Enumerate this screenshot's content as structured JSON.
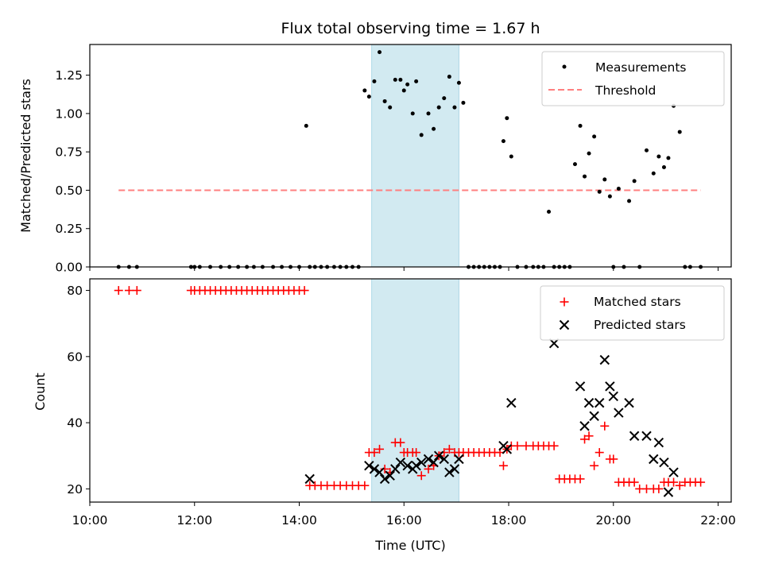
{
  "title": "Flux total observing time = 1.67 h",
  "colors": {
    "measurement": "#000000",
    "threshold": "#ff7f7f",
    "matched": "#ff0000",
    "predicted": "#000000",
    "highlight": "#add8e6"
  },
  "chart_data": [
    {
      "type": "scatter",
      "ylabel": "Matched/Predicted stars",
      "xlim": [
        "10:00",
        "22:15"
      ],
      "ylim": [
        0,
        1.45
      ],
      "grid": false,
      "legend_position": "top-right",
      "y_ticks": [
        "0.00",
        "0.25",
        "0.50",
        "0.75",
        "1.00",
        "1.25"
      ],
      "highlight_span": [
        "15:23",
        "17:03"
      ],
      "legend": [
        "Measurements",
        "Threshold"
      ],
      "threshold": {
        "name": "Threshold",
        "value": 0.5,
        "x_range": [
          "10:33",
          "21:40"
        ]
      },
      "measurements": {
        "name": "Measurements",
        "x": [
          "10:33",
          "10:45",
          "10:54",
          "11:56",
          "12:00",
          "12:06",
          "12:18",
          "12:30",
          "12:40",
          "12:50",
          "13:00",
          "13:08",
          "13:18",
          "13:30",
          "13:40",
          "13:50",
          "14:00",
          "14:08",
          "14:12",
          "14:18",
          "14:25",
          "14:32",
          "14:40",
          "14:47",
          "14:54",
          "15:01",
          "15:08",
          "15:15",
          "15:20",
          "15:26",
          "15:32",
          "15:38",
          "15:44",
          "15:50",
          "15:56",
          "16:00",
          "16:04",
          "16:10",
          "16:14",
          "16:20",
          "16:28",
          "16:34",
          "16:40",
          "16:46",
          "16:52",
          "16:58",
          "17:03",
          "17:08",
          "17:14",
          "17:20",
          "17:26",
          "17:32",
          "17:38",
          "17:44",
          "17:50",
          "17:54",
          "17:58",
          "18:03",
          "18:10",
          "18:20",
          "18:28",
          "18:34",
          "18:40",
          "18:46",
          "18:52",
          "18:58",
          "19:04",
          "19:10",
          "19:16",
          "19:22",
          "19:27",
          "19:32",
          "19:38",
          "19:44",
          "19:50",
          "19:56",
          "20:00",
          "20:06",
          "20:12",
          "20:18",
          "20:24",
          "20:30",
          "20:38",
          "20:46",
          "20:52",
          "20:58",
          "21:03",
          "21:09",
          "21:16",
          "21:22",
          "21:28",
          "21:40"
        ],
        "y": [
          0,
          0,
          0,
          0,
          0,
          0,
          0,
          0,
          0,
          0,
          0,
          0,
          0,
          0,
          0,
          0,
          0,
          0.92,
          0,
          0,
          0,
          0,
          0,
          0,
          0,
          0,
          0,
          1.15,
          1.11,
          1.21,
          1.4,
          1.08,
          1.04,
          1.22,
          1.22,
          1.15,
          1.19,
          1.0,
          1.21,
          0.86,
          1.0,
          0.9,
          1.04,
          1.1,
          1.24,
          1.04,
          1.2,
          1.07,
          0,
          0,
          0,
          0,
          0,
          0,
          0,
          0.82,
          0.97,
          0.72,
          0,
          0,
          0,
          0,
          0,
          0.36,
          0,
          0,
          0,
          0,
          0.67,
          0.92,
          0.59,
          0.74,
          0.85,
          0.49,
          0.57,
          0.46,
          0,
          0.51,
          0,
          0.43,
          0.56,
          0,
          0.76,
          0.61,
          0.72,
          0.65,
          0.71,
          1.05,
          0.88,
          0,
          0,
          0
        ]
      }
    },
    {
      "type": "scatter",
      "ylabel": "Count",
      "xlabel": "Time (UTC)",
      "xlim": [
        "10:00",
        "22:15"
      ],
      "ylim": [
        16,
        83.5
      ],
      "grid": false,
      "legend_position": "top-right",
      "x_ticks": [
        "10:00",
        "12:00",
        "14:00",
        "16:00",
        "18:00",
        "20:00",
        "22:00"
      ],
      "y_ticks": [
        "20",
        "40",
        "60",
        "80"
      ],
      "highlight_span": [
        "15:23",
        "17:03"
      ],
      "legend": [
        "Matched stars",
        "Predicted stars"
      ],
      "matched": {
        "name": "Matched stars",
        "x": [
          "10:33",
          "10:45",
          "10:54",
          "11:56",
          "12:00",
          "12:06",
          "12:12",
          "12:18",
          "12:24",
          "12:30",
          "12:36",
          "12:42",
          "12:48",
          "12:54",
          "13:00",
          "13:06",
          "13:12",
          "13:18",
          "13:24",
          "13:30",
          "13:36",
          "13:42",
          "13:48",
          "13:54",
          "14:00",
          "14:06",
          "14:12",
          "14:18",
          "14:25",
          "14:32",
          "14:40",
          "14:47",
          "14:54",
          "15:01",
          "15:08",
          "15:15",
          "15:20",
          "15:26",
          "15:32",
          "15:38",
          "15:44",
          "15:50",
          "15:56",
          "16:00",
          "16:04",
          "16:10",
          "16:14",
          "16:20",
          "16:28",
          "16:34",
          "16:40",
          "16:46",
          "16:52",
          "16:58",
          "17:03",
          "17:08",
          "17:14",
          "17:20",
          "17:26",
          "17:32",
          "17:38",
          "17:44",
          "17:50",
          "17:54",
          "17:58",
          "18:03",
          "18:10",
          "18:20",
          "18:28",
          "18:34",
          "18:40",
          "18:46",
          "18:52",
          "18:58",
          "19:04",
          "19:10",
          "19:16",
          "19:22",
          "19:27",
          "19:32",
          "19:38",
          "19:44",
          "19:50",
          "19:56",
          "20:00",
          "20:06",
          "20:12",
          "20:18",
          "20:24",
          "20:30",
          "20:38",
          "20:46",
          "20:52",
          "20:58",
          "21:03",
          "21:09",
          "21:16",
          "21:22",
          "21:28",
          "21:34",
          "21:40"
        ],
        "y": [
          80,
          80,
          80,
          80,
          80,
          80,
          80,
          80,
          80,
          80,
          80,
          80,
          80,
          80,
          80,
          80,
          80,
          80,
          80,
          80,
          80,
          80,
          80,
          80,
          80,
          80,
          21,
          21,
          21,
          21,
          21,
          21,
          21,
          21,
          21,
          21,
          31,
          31,
          32,
          26,
          25,
          34,
          34,
          31,
          31,
          31,
          31,
          24,
          26,
          27,
          30,
          31,
          32,
          31,
          31,
          31,
          31,
          31,
          31,
          31,
          31,
          31,
          31,
          27,
          32,
          33,
          33,
          33,
          33,
          33,
          33,
          33,
          33,
          23,
          23,
          23,
          23,
          23,
          35,
          36,
          27,
          31,
          39,
          29,
          29,
          22,
          22,
          22,
          22,
          20,
          20,
          20,
          20,
          22,
          22,
          22,
          21,
          22,
          22,
          22,
          22
        ]
      },
      "predicted": {
        "name": "Predicted stars",
        "x": [
          "14:12",
          "15:20",
          "15:26",
          "15:32",
          "15:38",
          "15:44",
          "15:50",
          "15:56",
          "16:04",
          "16:10",
          "16:14",
          "16:20",
          "16:28",
          "16:34",
          "16:40",
          "16:46",
          "16:52",
          "16:58",
          "17:03",
          "17:54",
          "17:58",
          "18:03",
          "18:52",
          "19:22",
          "19:27",
          "19:32",
          "19:38",
          "19:44",
          "19:50",
          "19:56",
          "20:00",
          "20:06",
          "20:18",
          "20:24",
          "20:38",
          "20:46",
          "20:52",
          "20:58",
          "21:03",
          "21:09"
        ],
        "y": [
          23,
          27,
          26,
          25,
          23,
          24,
          26,
          28,
          27,
          26,
          27,
          28,
          29,
          28,
          30,
          29,
          25,
          26,
          29,
          33,
          32,
          46,
          64,
          51,
          39,
          46,
          42,
          46,
          59,
          51,
          48,
          43,
          46,
          36,
          36,
          29,
          34,
          28,
          19,
          25
        ]
      }
    }
  ]
}
